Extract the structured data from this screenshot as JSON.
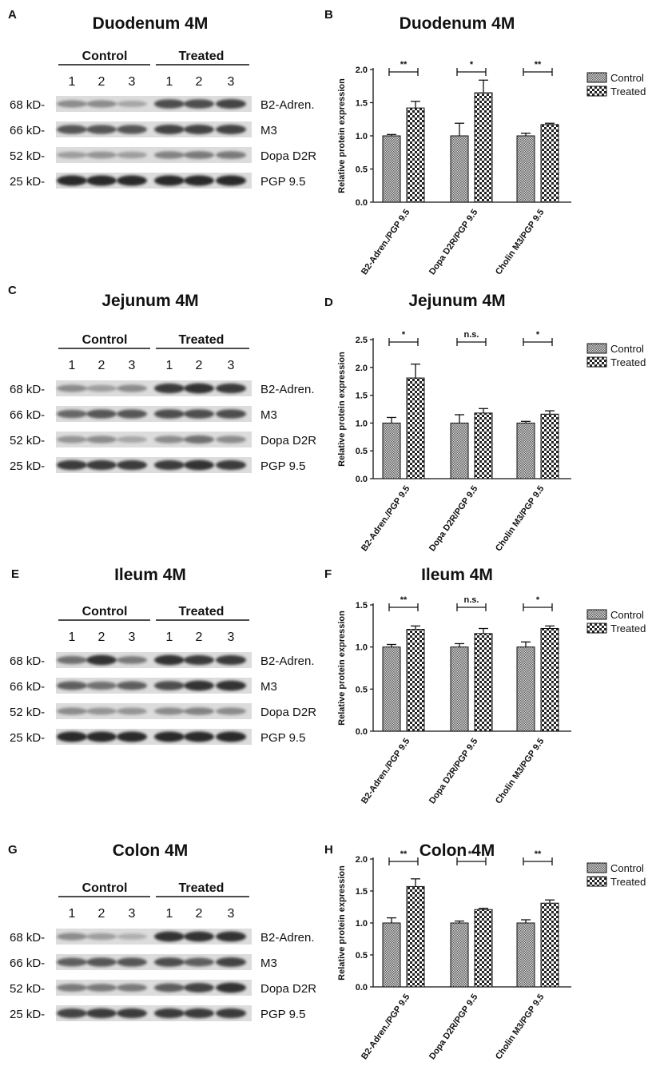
{
  "figure": {
    "panel_letters": [
      "A",
      "B",
      "C",
      "D",
      "E",
      "F",
      "G",
      "H"
    ],
    "blot_group_labels": [
      "Control",
      "Treated"
    ],
    "lane_numbers": [
      "1",
      "2",
      "3",
      "1",
      "2",
      "3"
    ],
    "marker_sizes": [
      "68 kD-",
      "66 kD-",
      "52 kD-",
      "25 kD-"
    ],
    "band_labels": [
      "B2-Adren.",
      "M3",
      "Dopa D2R",
      "PGP 9.5"
    ],
    "legend_labels": [
      "Control",
      "Treated"
    ],
    "ylabel": "Relative protein expression",
    "colors": {
      "ink": "#111111",
      "blot_bg": "#dcdcdc",
      "band": "#2a2a2a",
      "control_fill": "#d9d9d9",
      "treated_fill": "#ffffff"
    }
  },
  "panels": [
    {
      "blot_title": "Duodenum 4M",
      "chart_title": "Duodenum 4M"
    },
    {
      "blot_title": "Jejunum 4M",
      "chart_title": "Jejunum 4M"
    },
    {
      "blot_title": "Ileum 4M",
      "chart_title": "Ileum 4M"
    },
    {
      "blot_title": "Colon 4M",
      "chart_title": "Colon 4M"
    }
  ],
  "blot_band_intensity": [
    [
      [
        0.45,
        0.45,
        0.3,
        0.8,
        0.8,
        0.85
      ],
      [
        0.75,
        0.75,
        0.75,
        0.85,
        0.85,
        0.85
      ],
      [
        0.35,
        0.4,
        0.35,
        0.5,
        0.55,
        0.55
      ],
      [
        1,
        1,
        1,
        1,
        1,
        1
      ]
    ],
    [
      [
        0.45,
        0.35,
        0.45,
        0.9,
        0.95,
        0.9
      ],
      [
        0.65,
        0.75,
        0.75,
        0.8,
        0.8,
        0.8
      ],
      [
        0.4,
        0.45,
        0.3,
        0.45,
        0.6,
        0.45
      ],
      [
        0.9,
        0.9,
        0.9,
        0.9,
        0.95,
        0.9
      ]
    ],
    [
      [
        0.6,
        0.95,
        0.55,
        0.95,
        0.9,
        0.9
      ],
      [
        0.7,
        0.6,
        0.7,
        0.8,
        0.95,
        0.95
      ],
      [
        0.45,
        0.4,
        0.4,
        0.45,
        0.5,
        0.45
      ],
      [
        1,
        1,
        1,
        1,
        1,
        1
      ]
    ],
    [
      [
        0.45,
        0.35,
        0.25,
        0.95,
        0.95,
        0.95
      ],
      [
        0.7,
        0.75,
        0.75,
        0.8,
        0.7,
        0.85
      ],
      [
        0.55,
        0.55,
        0.55,
        0.7,
        0.85,
        0.95
      ],
      [
        0.85,
        0.9,
        0.9,
        0.9,
        0.9,
        0.9
      ]
    ]
  ],
  "chart_data": [
    {
      "type": "bar",
      "title": "Duodenum 4M",
      "ylabel": "Relative protein expression",
      "categories": [
        "B2-Adren./PGP 9.5",
        "Dopa D2R/PGP 9.5",
        "Cholin M3/PGP 9.5"
      ],
      "series": [
        {
          "name": "Control",
          "values": [
            1.0,
            1.0,
            1.0
          ],
          "errors": [
            0.02,
            0.19,
            0.04
          ]
        },
        {
          "name": "Treated",
          "values": [
            1.42,
            1.65,
            1.17
          ],
          "errors": [
            0.1,
            0.19,
            0.02
          ]
        }
      ],
      "significance": [
        "**",
        "*",
        "**"
      ],
      "ylim": [
        0,
        2.0
      ],
      "yticks": [
        "0.0",
        "0.5",
        "1.0",
        "1.5",
        "2.0"
      ],
      "legend_position": "right"
    },
    {
      "type": "bar",
      "title": "Jejunum 4M",
      "ylabel": "Relative protein expression",
      "categories": [
        "B2-Adren./PGP 9.5",
        "Dopa D2R/PGP 9.5",
        "Cholin M3/PGP 9.5"
      ],
      "series": [
        {
          "name": "Control",
          "values": [
            1.0,
            1.0,
            1.0
          ],
          "errors": [
            0.1,
            0.15,
            0.03
          ]
        },
        {
          "name": "Treated",
          "values": [
            1.81,
            1.18,
            1.16
          ],
          "errors": [
            0.25,
            0.08,
            0.06
          ]
        }
      ],
      "significance": [
        "*",
        "n.s.",
        "*"
      ],
      "ylim": [
        0,
        2.5
      ],
      "yticks": [
        "0.0",
        "0.5",
        "1.0",
        "1.5",
        "2.0",
        "2.5"
      ],
      "legend_position": "right"
    },
    {
      "type": "bar",
      "title": "Ileum 4M",
      "ylabel": "Relative protein expression",
      "categories": [
        "B2-Adren./PGP 9.5",
        "Dopa D2R/PGP 9.5",
        "Cholin M3/PGP 9.5"
      ],
      "series": [
        {
          "name": "Control",
          "values": [
            1.0,
            1.0,
            1.0
          ],
          "errors": [
            0.03,
            0.04,
            0.06
          ]
        },
        {
          "name": "Treated",
          "values": [
            1.21,
            1.16,
            1.22
          ],
          "errors": [
            0.04,
            0.06,
            0.03
          ]
        }
      ],
      "significance": [
        "**",
        "n.s.",
        "*"
      ],
      "ylim": [
        0,
        1.5
      ],
      "yticks": [
        "0.0",
        "0.5",
        "1.0",
        "1.5"
      ],
      "legend_position": "right"
    },
    {
      "type": "bar",
      "title": "Colon 4M",
      "ylabel": "Relative protein expression",
      "categories": [
        "B2-Adren./PGP 9.5",
        "Dopa D2R/PGP 9.5",
        "Cholin M3/PGP 9.5"
      ],
      "series": [
        {
          "name": "Control",
          "values": [
            1.0,
            1.0,
            1.0
          ],
          "errors": [
            0.08,
            0.03,
            0.05
          ]
        },
        {
          "name": "Treated",
          "values": [
            1.57,
            1.21,
            1.31
          ],
          "errors": [
            0.12,
            0.02,
            0.05
          ]
        }
      ],
      "significance": [
        "**",
        "**",
        "**"
      ],
      "ylim": [
        0,
        2.0
      ],
      "yticks": [
        "0.0",
        "0.5",
        "1.0",
        "1.5",
        "2.0"
      ],
      "legend_position": "right"
    }
  ]
}
